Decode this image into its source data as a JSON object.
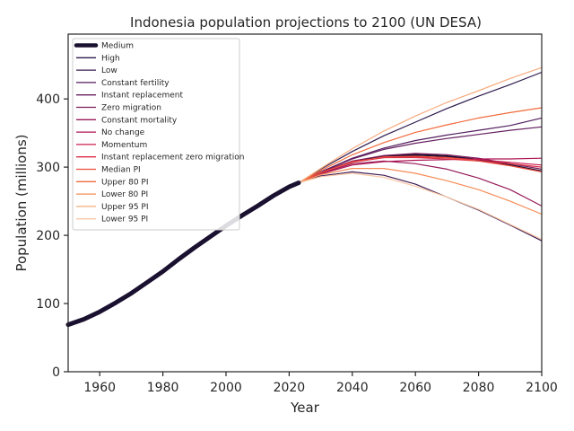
{
  "chart_data": {
    "type": "line",
    "title": "Indonesia population projections to 2100 (UN DESA)",
    "xlabel": "Year",
    "ylabel": "Population (millions)",
    "xlim": [
      1950,
      2100
    ],
    "ylim": [
      0,
      495
    ],
    "xticks": [
      1960,
      1980,
      2000,
      2020,
      2040,
      2060,
      2080,
      2100
    ],
    "yticks": [
      0,
      100,
      200,
      300,
      400
    ],
    "grid": false,
    "legend_position": "top-left",
    "history": {
      "name": "Medium",
      "color": "#1a1030",
      "x": [
        1950,
        1955,
        1960,
        1965,
        1970,
        1975,
        1980,
        1985,
        1990,
        1995,
        2000,
        2005,
        2010,
        2015,
        2020,
        2023
      ],
      "y": [
        69,
        77,
        88,
        101,
        115,
        131,
        147,
        165,
        182,
        198,
        214,
        229,
        243,
        258,
        271,
        277
      ]
    },
    "series": [
      {
        "name": "Medium",
        "color": "#1a1030",
        "x": [
          2023,
          2030,
          2040,
          2050,
          2060,
          2070,
          2080,
          2090,
          2100
        ],
        "y": [
          277,
          292,
          308,
          316,
          318,
          316,
          311,
          303,
          294
        ]
      },
      {
        "name": "High",
        "color": "#2d1b4e",
        "x": [
          2023,
          2030,
          2040,
          2050,
          2060,
          2070,
          2080,
          2090,
          2100
        ],
        "y": [
          277,
          297,
          323,
          346,
          366,
          386,
          404,
          421,
          439
        ]
      },
      {
        "name": "Low",
        "color": "#3f1c54",
        "x": [
          2023,
          2030,
          2040,
          2050,
          2060,
          2070,
          2080,
          2090,
          2100
        ],
        "y": [
          277,
          287,
          293,
          288,
          275,
          256,
          237,
          215,
          192
        ]
      },
      {
        "name": "Constant fertility",
        "color": "#521e5e",
        "x": [
          2023,
          2030,
          2040,
          2050,
          2060,
          2070,
          2080,
          2090,
          2100
        ],
        "y": [
          277,
          293,
          313,
          328,
          339,
          347,
          354,
          361,
          372
        ]
      },
      {
        "name": "Instant replacement",
        "color": "#641f5f",
        "x": [
          2023,
          2030,
          2040,
          2050,
          2060,
          2070,
          2080,
          2090,
          2100
        ],
        "y": [
          277,
          293,
          312,
          326,
          335,
          342,
          348,
          354,
          359
        ]
      },
      {
        "name": "Zero migration",
        "color": "#7d1d5d",
        "x": [
          2023,
          2030,
          2040,
          2050,
          2060,
          2070,
          2080,
          2090,
          2100
        ],
        "y": [
          277,
          292,
          309,
          317,
          320,
          318,
          313,
          305,
          297
        ]
      },
      {
        "name": "Constant mortality",
        "color": "#961a59",
        "x": [
          2023,
          2030,
          2040,
          2050,
          2060,
          2070,
          2080,
          2090,
          2100
        ],
        "y": [
          277,
          291,
          305,
          309,
          305,
          297,
          284,
          267,
          243
        ]
      },
      {
        "name": "No change",
        "color": "#ae1554",
        "x": [
          2023,
          2030,
          2040,
          2050,
          2060,
          2070,
          2080,
          2090,
          2100
        ],
        "y": [
          277,
          290,
          303,
          308,
          310,
          311,
          312,
          312,
          313
        ]
      },
      {
        "name": "Momentum",
        "color": "#c81c4c",
        "x": [
          2023,
          2030,
          2040,
          2050,
          2060,
          2070,
          2080,
          2090,
          2100
        ],
        "y": [
          277,
          292,
          307,
          314,
          315,
          314,
          311,
          307,
          303
        ]
      },
      {
        "name": "Instant replacement zero migration",
        "color": "#dd2e45",
        "x": [
          2023,
          2030,
          2040,
          2050,
          2060,
          2070,
          2080,
          2090,
          2100
        ],
        "y": [
          277,
          292,
          308,
          314,
          314,
          312,
          309,
          305,
          300
        ]
      },
      {
        "name": "Median PI",
        "color": "#eb4d3d",
        "x": [
          2023,
          2030,
          2040,
          2050,
          2060,
          2070,
          2080,
          2090,
          2100
        ],
        "y": [
          277,
          292,
          307,
          315,
          316,
          314,
          309,
          302,
          293
        ]
      },
      {
        "name": "Upper 80 PI",
        "color": "#f26a3b",
        "x": [
          2023,
          2030,
          2040,
          2050,
          2060,
          2070,
          2080,
          2090,
          2100
        ],
        "y": [
          277,
          295,
          318,
          336,
          351,
          362,
          372,
          380,
          387
        ]
      },
      {
        "name": "Lower 80 PI",
        "color": "#f58c57",
        "x": [
          2023,
          2030,
          2040,
          2050,
          2060,
          2070,
          2080,
          2090,
          2100
        ],
        "y": [
          277,
          289,
          298,
          298,
          291,
          280,
          267,
          250,
          231
        ]
      },
      {
        "name": "Upper 95 PI",
        "color": "#f7ab7e",
        "x": [
          2023,
          2030,
          2040,
          2050,
          2060,
          2070,
          2080,
          2090,
          2100
        ],
        "y": [
          277,
          298,
          327,
          353,
          375,
          395,
          412,
          430,
          446
        ]
      },
      {
        "name": "Lower 95 PI",
        "color": "#f9c8a6",
        "x": [
          2023,
          2030,
          2040,
          2050,
          2060,
          2070,
          2080,
          2090,
          2100
        ],
        "y": [
          277,
          286,
          291,
          285,
          272,
          256,
          238,
          216,
          194
        ]
      }
    ]
  }
}
